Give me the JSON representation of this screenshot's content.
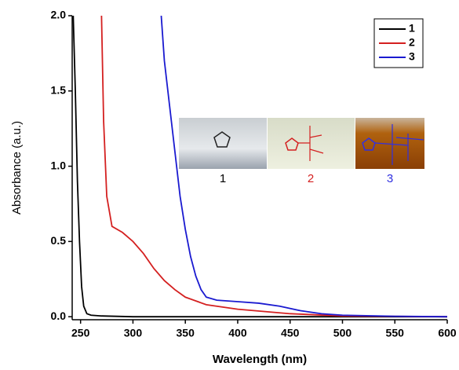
{
  "chart_data": {
    "type": "line",
    "x_label": "Wavelength (nm)",
    "y_label": "Absorbance (a.u.)",
    "xlim": [
      242,
      600
    ],
    "xticks": [
      250,
      300,
      350,
      400,
      450,
      500,
      550,
      600
    ],
    "ylim": [
      -0.02,
      2.0
    ],
    "yticks": [
      {
        "value": 0,
        "label": "0.0"
      },
      {
        "value": 0.5,
        "label": "0.5"
      },
      {
        "value": 1,
        "label": "1.0"
      },
      {
        "value": 1.5,
        "label": "1.5"
      },
      {
        "value": 2,
        "label": "2.0"
      }
    ],
    "legend": "upper right",
    "inset_labels": [
      "1",
      "2",
      "3"
    ],
    "series": [
      {
        "name": "1",
        "color": "#000000",
        "x": [
          243,
          245,
          247,
          249,
          251,
          253,
          256,
          260,
          270,
          300,
          600
        ],
        "values": [
          2.0,
          1.5,
          0.9,
          0.5,
          0.2,
          0.07,
          0.02,
          0.01,
          0.005,
          0,
          0
        ]
      },
      {
        "name": "2",
        "color": "#d42020",
        "x": [
          270,
          272,
          275,
          280,
          290,
          300,
          310,
          320,
          330,
          340,
          350,
          370,
          400,
          450,
          500,
          600
        ],
        "values": [
          2.0,
          1.3,
          0.8,
          0.6,
          0.56,
          0.5,
          0.42,
          0.32,
          0.24,
          0.18,
          0.13,
          0.08,
          0.05,
          0.02,
          0.005,
          0
        ]
      },
      {
        "name": "3",
        "color": "#1a1ad0",
        "x": [
          327,
          330,
          335,
          340,
          345,
          350,
          355,
          360,
          365,
          370,
          380,
          400,
          420,
          440,
          460,
          480,
          500,
          550,
          600
        ],
        "values": [
          2.0,
          1.7,
          1.4,
          1.1,
          0.8,
          0.58,
          0.4,
          0.27,
          0.18,
          0.13,
          0.11,
          0.1,
          0.09,
          0.07,
          0.04,
          0.02,
          0.01,
          0.003,
          0
        ]
      }
    ]
  }
}
